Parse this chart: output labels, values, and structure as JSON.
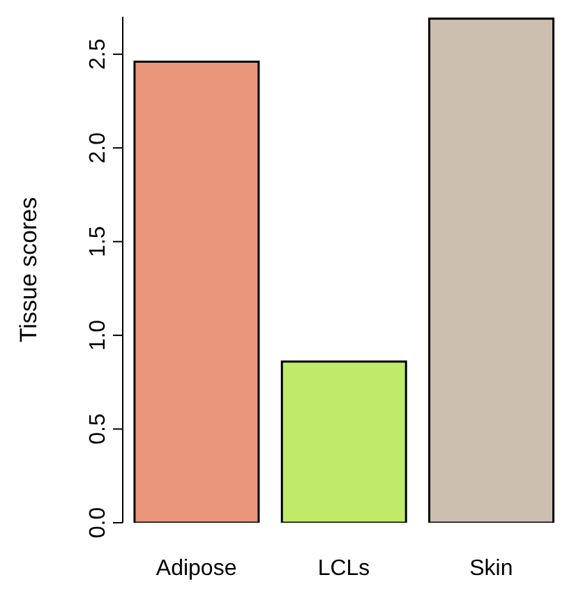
{
  "chart_data": {
    "type": "bar",
    "ylabel": "Tissue scores",
    "categories": [
      "Adipose",
      "LCLs",
      "Skin"
    ],
    "values": [
      2.46,
      0.86,
      2.69
    ],
    "colors": [
      "#e9967a",
      "#c0eb69",
      "#cdbfb0"
    ],
    "ylim": [
      0,
      2.7
    ],
    "yticks": [
      {
        "value": 0,
        "label": "0.0"
      },
      0.5,
      {
        "value": 1,
        "label": "1.0"
      },
      1.5,
      {
        "value": 2,
        "label": "2.0"
      },
      2.5
    ],
    "grid": false
  }
}
